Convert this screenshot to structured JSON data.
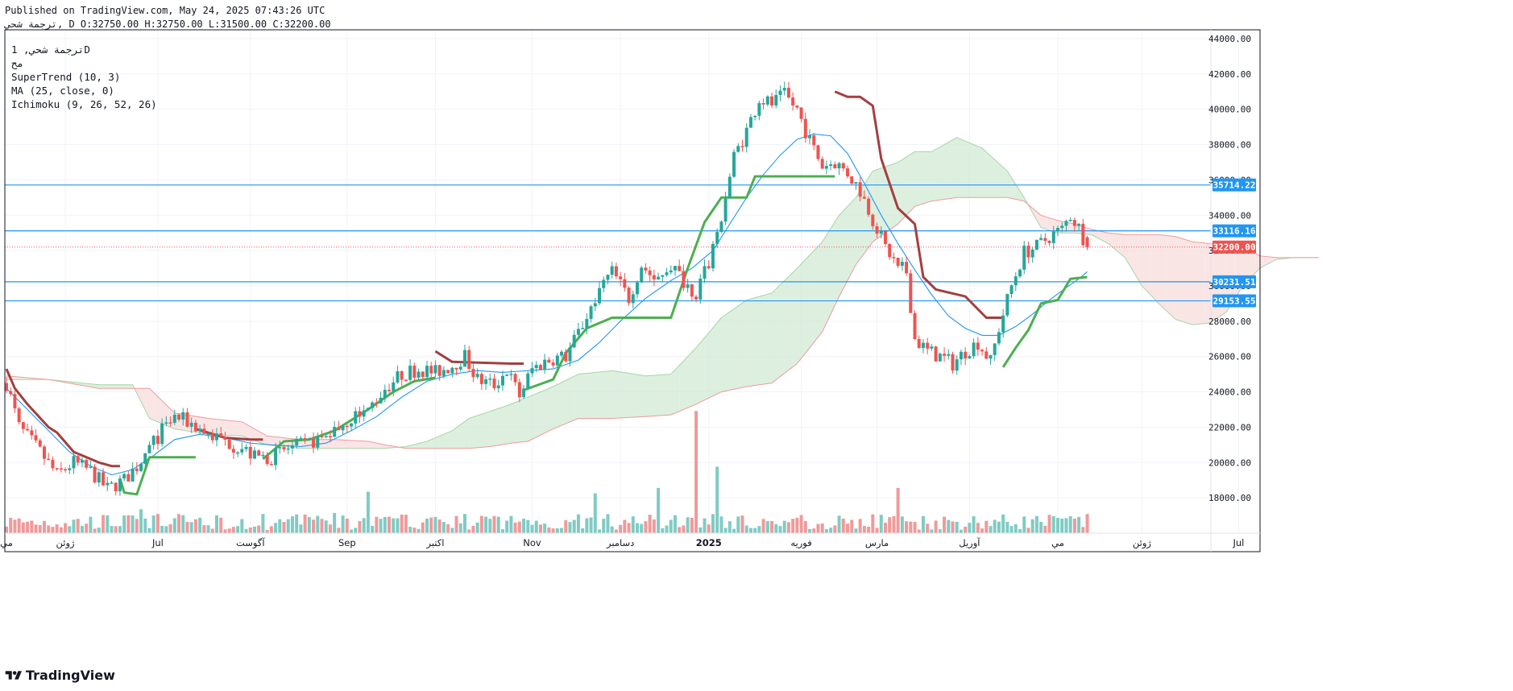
{
  "header": {
    "published": "Published on TradingView.com, May 24, 2025 07:43:26 UTC",
    "ohlc_line": "ترجمة شحي, D O:32750.00 H:32750.00 L:31500.00 C:32200.00"
  },
  "legend": {
    "symbol_line": "ترجمة شحي, 1D",
    "exchange": "مح",
    "supertrend": "SuperTrend (10, 3)",
    "ma": "MA (25, close, 0)",
    "ichimoku": "Ichimoku (9, 26, 52, 26)"
  },
  "brand": {
    "name": "TradingView"
  },
  "colors": {
    "up": "#26a69a",
    "down": "#ef5350",
    "supertrend_up": "#4caf50",
    "supertrend_down": "#a33f3f",
    "ma": "#2196f3",
    "hline": "#2196f3",
    "cloud_green": "#d1ead4",
    "cloud_red": "#f8dcdc",
    "vol_up": "#80cbc4",
    "vol_down": "#ef9a9a"
  },
  "chart_data": {
    "type": "candlestick",
    "ylim": [
      16000,
      44500
    ],
    "y_ticks": [
      18000,
      20000,
      22000,
      24000,
      26000,
      28000,
      30000,
      32000,
      34000,
      36000,
      38000,
      40000,
      42000,
      44000
    ],
    "x_labels": [
      {
        "i": 0,
        "text": "مي"
      },
      {
        "i": 14,
        "text": "ژوئن"
      },
      {
        "i": 36,
        "text": "Jul"
      },
      {
        "i": 58,
        "text": "آگوست"
      },
      {
        "i": 81,
        "text": "Sep"
      },
      {
        "i": 102,
        "text": "اکتبر"
      },
      {
        "i": 125,
        "text": "Nov"
      },
      {
        "i": 146,
        "text": "دسامبر"
      },
      {
        "i": 167,
        "text": "2025"
      },
      {
        "i": 189,
        "text": "فوریه"
      },
      {
        "i": 207,
        "text": "مارس"
      },
      {
        "i": 229,
        "text": "آوریل"
      },
      {
        "i": 250,
        "text": "مي"
      },
      {
        "i": 270,
        "text": "ژوئن"
      },
      {
        "i": 293,
        "text": "Jul"
      }
    ],
    "price_tags": [
      {
        "value": 35714.22,
        "label": "35714.22",
        "kind": "hline"
      },
      {
        "value": 33116.16,
        "label": "33116.16",
        "kind": "hline"
      },
      {
        "value": 32200.0,
        "label": "32200.00",
        "kind": "last"
      },
      {
        "value": 30231.51,
        "label": "30231.51",
        "kind": "hline"
      },
      {
        "value": 29153.55,
        "label": "29153.55",
        "kind": "hline"
      }
    ],
    "anchors": [
      [
        0,
        24500
      ],
      [
        3,
        22000
      ],
      [
        8,
        20600
      ],
      [
        12,
        19300
      ],
      [
        16,
        20000
      ],
      [
        20,
        19500
      ],
      [
        24,
        18500
      ],
      [
        28,
        19000
      ],
      [
        31,
        19800
      ],
      [
        34,
        20800
      ],
      [
        37,
        21800
      ],
      [
        40,
        22600
      ],
      [
        44,
        22200
      ],
      [
        48,
        21600
      ],
      [
        52,
        21200
      ],
      [
        56,
        20800
      ],
      [
        59,
        20300
      ],
      [
        63,
        20300
      ],
      [
        67,
        20800
      ],
      [
        71,
        21000
      ],
      [
        75,
        21400
      ],
      [
        79,
        22000
      ],
      [
        82,
        22500
      ],
      [
        86,
        23000
      ],
      [
        90,
        24200
      ],
      [
        94,
        25000
      ],
      [
        98,
        25300
      ],
      [
        102,
        25100
      ],
      [
        106,
        25500
      ],
      [
        109,
        26000
      ],
      [
        112,
        24700
      ],
      [
        116,
        24400
      ],
      [
        119,
        25200
      ],
      [
        122,
        23800
      ],
      [
        125,
        25300
      ],
      [
        128,
        25700
      ],
      [
        130,
        25900
      ],
      [
        133,
        26000
      ],
      [
        137,
        27800
      ],
      [
        141,
        29800
      ],
      [
        144,
        30800
      ],
      [
        148,
        29300
      ],
      [
        151,
        31200
      ],
      [
        154,
        30400
      ],
      [
        158,
        31200
      ],
      [
        161,
        30300
      ],
      [
        164,
        29600
      ],
      [
        167,
        31300
      ],
      [
        170,
        34000
      ],
      [
        173,
        37300
      ],
      [
        176,
        38800
      ],
      [
        179,
        40600
      ],
      [
        182,
        40300
      ],
      [
        185,
        40800
      ],
      [
        188,
        40000
      ],
      [
        191,
        38200
      ],
      [
        194,
        36800
      ],
      [
        197,
        37000
      ],
      [
        200,
        36400
      ],
      [
        203,
        35400
      ],
      [
        206,
        33800
      ],
      [
        209,
        32200
      ],
      [
        212,
        31100
      ],
      [
        214,
        30800
      ],
      [
        216,
        27000
      ],
      [
        219,
        26300
      ],
      [
        222,
        26000
      ],
      [
        225,
        25600
      ],
      [
        228,
        26300
      ],
      [
        231,
        26800
      ],
      [
        234,
        25700
      ],
      [
        236,
        27600
      ],
      [
        239,
        30000
      ],
      [
        242,
        31900
      ],
      [
        245,
        32200
      ],
      [
        248,
        32800
      ],
      [
        251,
        33200
      ],
      [
        253,
        34000
      ],
      [
        255,
        33300
      ],
      [
        257,
        32200
      ]
    ],
    "vol_spikes": {
      "164": 23,
      "169": 12.5,
      "155": 8.5,
      "86": 7.8,
      "32": 4.5,
      "78": 3.8,
      "212": 8.5,
      "140": 7.5
    },
    "supertrend": [
      [
        0,
        25300,
        "d"
      ],
      [
        2,
        24200,
        "d"
      ],
      [
        5,
        23300,
        "d"
      ],
      [
        10,
        22000,
        "d"
      ],
      [
        12,
        21700,
        "d"
      ],
      [
        16,
        20600,
        "d"
      ],
      [
        22,
        20000,
        "d"
      ],
      [
        25,
        19800,
        "d"
      ],
      [
        27,
        19800,
        "d"
      ],
      [
        27,
        19100,
        "u"
      ],
      [
        28,
        18300,
        "u"
      ],
      [
        31,
        18200,
        "u"
      ],
      [
        34,
        20300,
        "u"
      ],
      [
        45,
        20300,
        "u"
      ],
      [
        45,
        21900,
        "d"
      ],
      [
        52,
        21400,
        "d"
      ],
      [
        58,
        21300,
        "d"
      ],
      [
        61,
        21300,
        "d"
      ],
      [
        61,
        20200,
        "u"
      ],
      [
        66,
        21200,
        "u"
      ],
      [
        72,
        21300,
        "u"
      ],
      [
        78,
        21800,
        "u"
      ],
      [
        86,
        23000,
        "u"
      ],
      [
        92,
        24000,
        "u"
      ],
      [
        97,
        24600,
        "u"
      ],
      [
        102,
        24800,
        "u"
      ],
      [
        102,
        26300,
        "d"
      ],
      [
        106,
        25700,
        "d"
      ],
      [
        120,
        25600,
        "d"
      ],
      [
        123,
        25600,
        "d"
      ],
      [
        123,
        24100,
        "u"
      ],
      [
        130,
        24700,
        "u"
      ],
      [
        133,
        26200,
        "u"
      ],
      [
        138,
        27600,
        "u"
      ],
      [
        144,
        28200,
        "u"
      ],
      [
        158,
        28200,
        "u"
      ],
      [
        162,
        31000,
        "u"
      ],
      [
        166,
        33600,
        "u"
      ],
      [
        170,
        35000,
        "u"
      ],
      [
        176,
        35000,
        "u"
      ],
      [
        178,
        36200,
        "u"
      ],
      [
        185,
        36200,
        "u"
      ],
      [
        191,
        36200,
        "u"
      ],
      [
        197,
        36200,
        "u"
      ],
      [
        197,
        41000,
        "d"
      ],
      [
        200,
        40700,
        "d"
      ],
      [
        203,
        40700,
        "d"
      ],
      [
        206,
        40200,
        "d"
      ],
      [
        208,
        37200,
        "d"
      ],
      [
        212,
        34400,
        "d"
      ],
      [
        216,
        33500,
        "d"
      ],
      [
        218,
        30500,
        "d"
      ],
      [
        221,
        29800,
        "d"
      ],
      [
        228,
        29400,
        "d"
      ],
      [
        233,
        28200,
        "d"
      ],
      [
        237,
        28200,
        "d"
      ],
      [
        237,
        25400,
        "u"
      ],
      [
        240,
        26500,
        "u"
      ],
      [
        243,
        27500,
        "u"
      ],
      [
        246,
        29000,
        "u"
      ],
      [
        250,
        29200,
        "u"
      ],
      [
        253,
        30400,
        "u"
      ],
      [
        257,
        30500,
        "u"
      ]
    ],
    "ma": [
      [
        0,
        24200
      ],
      [
        5,
        23000
      ],
      [
        10,
        21800
      ],
      [
        15,
        20600
      ],
      [
        20,
        19800
      ],
      [
        25,
        19300
      ],
      [
        30,
        19600
      ],
      [
        35,
        20400
      ],
      [
        40,
        21300
      ],
      [
        46,
        21600
      ],
      [
        52,
        21400
      ],
      [
        58,
        21100
      ],
      [
        63,
        21000
      ],
      [
        70,
        20900
      ],
      [
        76,
        21100
      ],
      [
        82,
        21800
      ],
      [
        88,
        22600
      ],
      [
        94,
        23700
      ],
      [
        100,
        24600
      ],
      [
        106,
        25000
      ],
      [
        112,
        25200
      ],
      [
        118,
        25100
      ],
      [
        124,
        25200
      ],
      [
        130,
        25300
      ],
      [
        136,
        25800
      ],
      [
        141,
        26800
      ],
      [
        146,
        28000
      ],
      [
        152,
        29300
      ],
      [
        158,
        30300
      ],
      [
        163,
        31000
      ],
      [
        168,
        32000
      ],
      [
        172,
        33500
      ],
      [
        176,
        35000
      ],
      [
        180,
        36300
      ],
      [
        184,
        37400
      ],
      [
        188,
        38300
      ],
      [
        192,
        38600
      ],
      [
        196,
        38500
      ],
      [
        200,
        37500
      ],
      [
        204,
        35800
      ],
      [
        208,
        34000
      ],
      [
        212,
        32400
      ],
      [
        216,
        30900
      ],
      [
        220,
        29500
      ],
      [
        224,
        28300
      ],
      [
        228,
        27600
      ],
      [
        232,
        27200
      ],
      [
        236,
        27200
      ],
      [
        240,
        27700
      ],
      [
        244,
        28400
      ],
      [
        248,
        29200
      ],
      [
        252,
        29900
      ],
      [
        255,
        30400
      ],
      [
        257,
        30800
      ]
    ],
    "cloud_a": [
      [
        0,
        24700
      ],
      [
        10,
        24700
      ],
      [
        22,
        24400
      ],
      [
        30,
        24400
      ],
      [
        34,
        22500
      ],
      [
        40,
        21900
      ],
      [
        48,
        21600
      ],
      [
        56,
        21500
      ],
      [
        62,
        21000
      ],
      [
        70,
        20800
      ],
      [
        78,
        20800
      ],
      [
        86,
        20800
      ],
      [
        90,
        20800
      ],
      [
        95,
        20900
      ],
      [
        100,
        21200
      ],
      [
        106,
        21800
      ],
      [
        110,
        22500
      ],
      [
        115,
        22900
      ],
      [
        120,
        23300
      ],
      [
        124,
        23700
      ],
      [
        130,
        24300
      ],
      [
        136,
        25000
      ],
      [
        144,
        25200
      ],
      [
        152,
        24900
      ],
      [
        158,
        25000
      ],
      [
        164,
        26500
      ],
      [
        170,
        28200
      ],
      [
        176,
        29200
      ],
      [
        182,
        29600
      ],
      [
        188,
        31000
      ],
      [
        194,
        32500
      ],
      [
        198,
        34000
      ],
      [
        202,
        35000
      ],
      [
        206,
        36500
      ],
      [
        212,
        37000
      ],
      [
        216,
        37600
      ],
      [
        220,
        37600
      ],
      [
        226,
        38400
      ],
      [
        232,
        37800
      ],
      [
        238,
        36500
      ],
      [
        242,
        35000
      ],
      [
        246,
        33300
      ],
      [
        250,
        33000
      ],
      [
        254,
        33000
      ],
      [
        258,
        32900
      ],
      [
        262,
        32400
      ],
      [
        266,
        31600
      ],
      [
        270,
        30000
      ],
      [
        274,
        29000
      ],
      [
        278,
        28100
      ],
      [
        282,
        27800
      ],
      [
        286,
        27900
      ],
      [
        290,
        28500
      ],
      [
        294,
        30000
      ],
      [
        298,
        31000
      ],
      [
        302,
        31500
      ],
      [
        306,
        31600
      ],
      [
        312,
        31600
      ]
    ],
    "cloud_b": [
      [
        0,
        24900
      ],
      [
        10,
        24700
      ],
      [
        22,
        24200
      ],
      [
        30,
        24200
      ],
      [
        34,
        24200
      ],
      [
        40,
        22800
      ],
      [
        48,
        22500
      ],
      [
        56,
        22300
      ],
      [
        62,
        21500
      ],
      [
        70,
        21300
      ],
      [
        78,
        21300
      ],
      [
        86,
        21200
      ],
      [
        90,
        21000
      ],
      [
        95,
        20800
      ],
      [
        100,
        20800
      ],
      [
        106,
        20800
      ],
      [
        110,
        20800
      ],
      [
        115,
        20900
      ],
      [
        120,
        21100
      ],
      [
        124,
        21200
      ],
      [
        130,
        21900
      ],
      [
        136,
        22500
      ],
      [
        144,
        22500
      ],
      [
        152,
        22600
      ],
      [
        158,
        22700
      ],
      [
        164,
        23300
      ],
      [
        170,
        24000
      ],
      [
        176,
        24300
      ],
      [
        182,
        24500
      ],
      [
        188,
        25600
      ],
      [
        194,
        27400
      ],
      [
        198,
        29400
      ],
      [
        202,
        31200
      ],
      [
        206,
        32500
      ],
      [
        212,
        33500
      ],
      [
        216,
        34500
      ],
      [
        220,
        34800
      ],
      [
        226,
        35000
      ],
      [
        232,
        35000
      ],
      [
        238,
        35000
      ],
      [
        242,
        34800
      ],
      [
        246,
        34000
      ],
      [
        250,
        33700
      ],
      [
        254,
        33500
      ],
      [
        258,
        33200
      ],
      [
        262,
        33000
      ],
      [
        266,
        32900
      ],
      [
        270,
        32900
      ],
      [
        274,
        32900
      ],
      [
        278,
        32800
      ],
      [
        282,
        32500
      ],
      [
        286,
        32400
      ],
      [
        290,
        32400
      ],
      [
        294,
        32300
      ],
      [
        298,
        31700
      ],
      [
        302,
        31600
      ],
      [
        306,
        31600
      ],
      [
        312,
        31600
      ]
    ]
  }
}
